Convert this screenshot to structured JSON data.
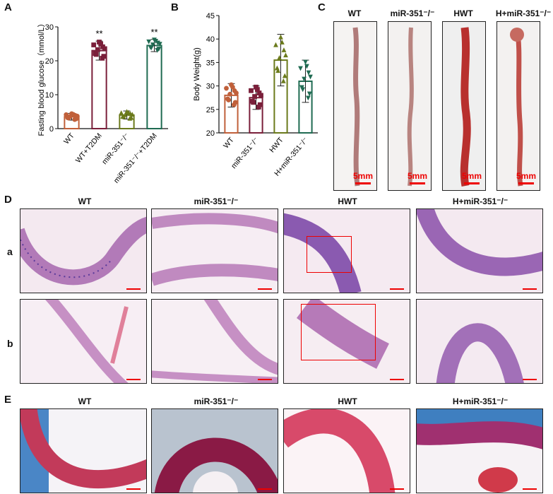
{
  "panels": {
    "A": "A",
    "B": "B",
    "C": "C",
    "D": "D",
    "E": "E"
  },
  "colors": {
    "wt": "#c0603a",
    "t2dm": "#7a1f3a",
    "mir": "#6b7a1c",
    "mir_t2dm": "#1f6b52",
    "he_bg": "#f3e6ee",
    "he_tissue": "#c27ab8",
    "he_nuclei": "#5a3a9a",
    "masson_red": "#c23a5a",
    "masson_blue": "#3f7fc0",
    "scale": "#e00000"
  },
  "chart_data": [
    {
      "type": "bar",
      "panel": "A",
      "categories": [
        "WT",
        "WT+T2DM",
        "miR-351⁻/⁻",
        "miR-351⁻/⁻+T2DM"
      ],
      "values": [
        3.5,
        23,
        4,
        24.5
      ],
      "errors": [
        1.0,
        2.8,
        1.2,
        1.8
      ],
      "markers": [
        "circle",
        "square",
        "triangle-up",
        "triangle-down"
      ],
      "significance": [
        "",
        "**",
        "",
        "**"
      ],
      "ylabel": "Fasting blood glucose（mmol/L）",
      "ylim": [
        0,
        30
      ],
      "yticks": [
        0,
        10,
        20,
        30
      ]
    },
    {
      "type": "bar",
      "panel": "B",
      "categories": [
        "WT",
        "miR-351⁻/⁻",
        "HWT",
        "H+miR-351⁻/⁻"
      ],
      "values": [
        28,
        27.5,
        35.5,
        31
      ],
      "errors": [
        2.5,
        2.5,
        5.5,
        4.5
      ],
      "markers": [
        "circle",
        "square",
        "triangle-up",
        "triangle-down"
      ],
      "ylabel": "Body Weight(g)",
      "ylim": [
        20,
        45
      ],
      "yticks": [
        20,
        25,
        30,
        35,
        40,
        45
      ]
    }
  ],
  "panelC": {
    "titles": [
      "WT",
      "miR-351⁻/⁻",
      "HWT",
      "H+miR-351⁻/⁻"
    ],
    "scale_label": "5mm"
  },
  "panelD": {
    "titles": [
      "WT",
      "miR-351⁻/⁻",
      "HWT",
      "H+miR-351⁻/⁻"
    ],
    "rows": [
      "a",
      "b"
    ]
  },
  "panelE": {
    "titles": [
      "WT",
      "miR-351⁻/⁻",
      "HWT",
      "H+miR-351⁻/⁻"
    ]
  }
}
